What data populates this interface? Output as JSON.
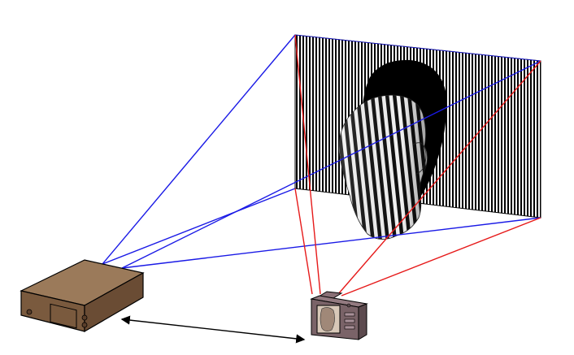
{
  "diagram": {
    "projection_ray_color": "#1a1ae6",
    "camera_ray_color": "#e61a1a",
    "baseline_color": "#000000",
    "projector_color": "#8a6a4a",
    "camera_color": "#7a6368",
    "fringe_pattern": "vertical-stripes",
    "components": [
      {
        "name": "fringe-projector"
      },
      {
        "name": "camera"
      },
      {
        "name": "projected-fringe-screen"
      },
      {
        "name": "head-object"
      },
      {
        "name": "baseline-double-arrow"
      }
    ]
  }
}
